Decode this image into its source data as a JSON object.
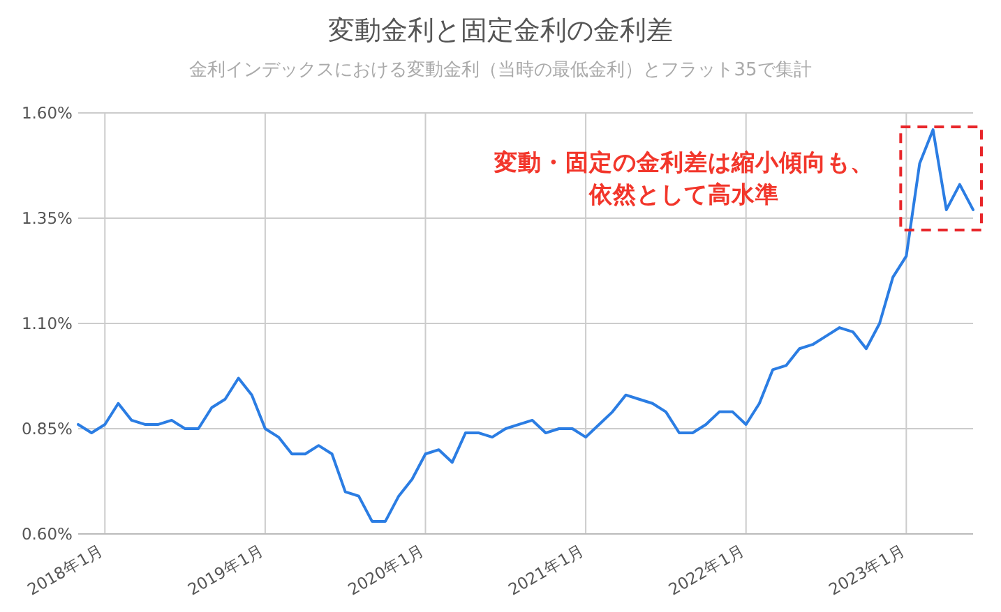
{
  "chart_data": {
    "type": "line",
    "title": "変動金利と固定金利の金利差",
    "subtitle": "金利インデックスにおける変動金利（当時の最低金利）とフラット35で集計",
    "annotations": [
      "変動・固定の金利差は縮小傾向も、",
      "依然として高水準"
    ],
    "x": [
      "2017-11",
      "2017-12",
      "2018-01",
      "2018-02",
      "2018-03",
      "2018-04",
      "2018-05",
      "2018-06",
      "2018-07",
      "2018-08",
      "2018-09",
      "2018-10",
      "2018-11",
      "2018-12",
      "2019-01",
      "2019-02",
      "2019-03",
      "2019-04",
      "2019-05",
      "2019-06",
      "2019-07",
      "2019-08",
      "2019-09",
      "2019-10",
      "2019-11",
      "2019-12",
      "2020-01",
      "2020-02",
      "2020-03",
      "2020-04",
      "2020-05",
      "2020-06",
      "2020-07",
      "2020-08",
      "2020-09",
      "2020-10",
      "2020-11",
      "2020-12",
      "2021-01",
      "2021-02",
      "2021-03",
      "2021-04",
      "2021-05",
      "2021-06",
      "2021-07",
      "2021-08",
      "2021-09",
      "2021-10",
      "2021-11",
      "2021-12",
      "2022-01",
      "2022-02",
      "2022-03",
      "2022-04",
      "2022-05",
      "2022-06",
      "2022-07",
      "2022-08",
      "2022-09",
      "2022-10",
      "2022-11",
      "2022-12",
      "2023-01",
      "2023-02",
      "2023-03",
      "2023-04",
      "2023-05",
      "2023-06"
    ],
    "series": [
      {
        "color": "#2b7de3",
        "values": [
          0.86,
          0.84,
          0.86,
          0.91,
          0.87,
          0.86,
          0.86,
          0.87,
          0.85,
          0.85,
          0.9,
          0.92,
          0.97,
          0.93,
          0.85,
          0.83,
          0.79,
          0.79,
          0.81,
          0.79,
          0.7,
          0.69,
          0.63,
          0.63,
          0.69,
          0.73,
          0.79,
          0.8,
          0.77,
          0.84,
          0.84,
          0.83,
          0.85,
          0.86,
          0.87,
          0.84,
          0.85,
          0.85,
          0.83,
          0.86,
          0.89,
          0.93,
          0.92,
          0.91,
          0.89,
          0.84,
          0.84,
          0.86,
          0.89,
          0.89,
          0.86,
          0.91,
          0.99,
          1.0,
          1.04,
          1.05,
          1.07,
          1.09,
          1.08,
          1.04,
          1.1,
          1.21,
          1.26,
          1.48,
          1.56,
          1.37,
          1.43,
          1.37
        ]
      }
    ],
    "xlim": [
      "2017-11",
      "2023-06"
    ],
    "xticks": [
      {
        "value": "2018-01",
        "label": "2018年1月"
      },
      {
        "value": "2019-01",
        "label": "2019年1月"
      },
      {
        "value": "2020-01",
        "label": "2020年1月"
      },
      {
        "value": "2021-01",
        "label": "2021年1月"
      },
      {
        "value": "2022-01",
        "label": "2022年1月"
      },
      {
        "value": "2023-01",
        "label": "2023年1月"
      }
    ],
    "ylim": [
      0.6,
      1.6
    ],
    "yticks": [
      {
        "value": 0.6,
        "label": "0.60%"
      },
      {
        "value": 0.85,
        "label": "0.85%"
      },
      {
        "value": 1.1,
        "label": "1.10%"
      },
      {
        "value": 1.35,
        "label": "1.35%"
      },
      {
        "value": 1.6,
        "label": "1.60%"
      }
    ],
    "grid": true,
    "marker": "none",
    "line_style": "solid"
  }
}
